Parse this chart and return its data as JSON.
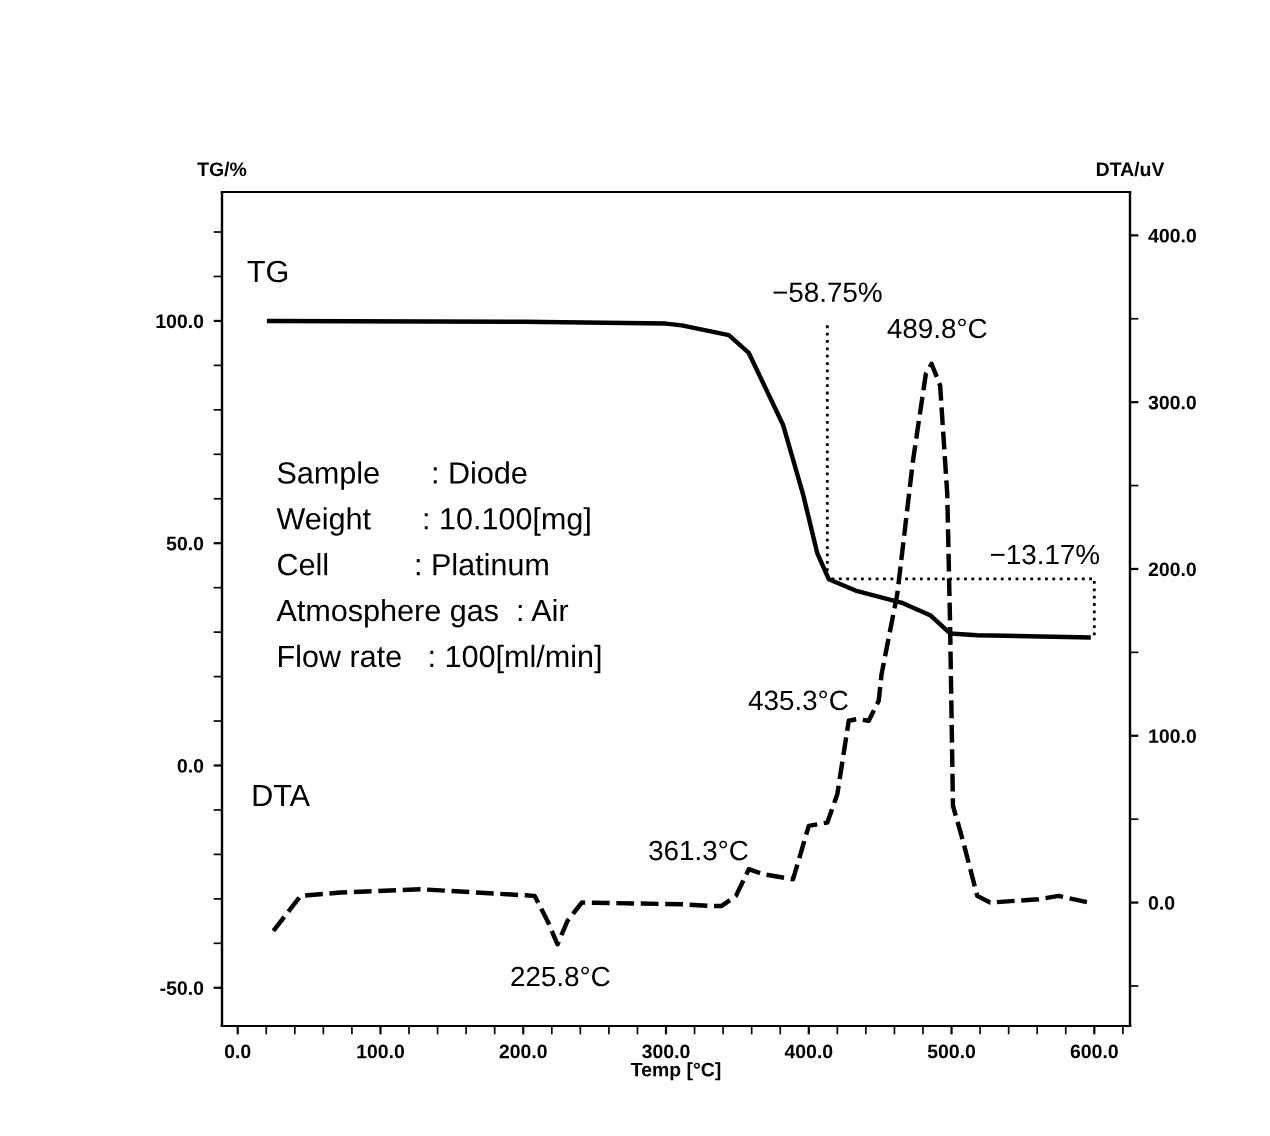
{
  "chart_data": {
    "type": "line",
    "xlabel": "Temp [°C]",
    "ylabel": "TG/%",
    "y2label": "DTA/uV",
    "xlim": [
      -11,
      625
    ],
    "ylim": [
      -58.6,
      129
    ],
    "y2lim": [
      -74,
      426
    ],
    "xticks": [
      {
        "value": 0,
        "label": "0.0"
      },
      {
        "value": 100,
        "label": "100.0"
      },
      {
        "value": 200,
        "label": "200.0"
      },
      {
        "value": 300,
        "label": "300.0"
      },
      {
        "value": 400,
        "label": "400.0"
      },
      {
        "value": 500,
        "label": "500.0"
      },
      {
        "value": 600,
        "label": "600.0"
      }
    ],
    "yticks": [
      {
        "value": -50,
        "label": "-50.0"
      },
      {
        "value": 0,
        "label": "0.0"
      },
      {
        "value": 50,
        "label": "50.0"
      },
      {
        "value": 100,
        "label": "100.0"
      }
    ],
    "y2ticks": [
      {
        "value": 0,
        "label": "0.0"
      },
      {
        "value": 100,
        "label": "100.0"
      },
      {
        "value": 200,
        "label": "200.0"
      },
      {
        "value": 300,
        "label": "300.0"
      },
      {
        "value": 400,
        "label": "400.0"
      }
    ],
    "grid": false,
    "series": [
      {
        "name": "TG",
        "color": "#000000",
        "line_style": "solid",
        "x": [
          22,
          200,
          300,
          311,
          344,
          358,
          382,
          396,
          406,
          414,
          434,
          466,
          485,
          499,
          518,
          596
        ],
        "values": [
          100,
          99.8,
          99.4,
          99,
          96.8,
          92.8,
          76.6,
          61,
          47.7,
          41.9,
          39.2,
          36.5,
          33.8,
          29.7,
          29.3,
          28.8
        ]
      },
      {
        "color": "#000000",
        "line_style": "dotted",
        "x": [
          413,
          413,
          600,
          600
        ],
        "values": [
          99,
          42,
          42,
          29
        ]
      },
      {
        "name": "DTA",
        "color": "#000000",
        "line_style": "dashed",
        "axis": "y2",
        "x": [
          25,
          44,
          72,
          128,
          208,
          217,
          224,
          231,
          241,
          311,
          330,
          339,
          349,
          358,
          368,
          389,
          400,
          413,
          420,
          428,
          434,
          442,
          449,
          451,
          462,
          473,
          482,
          486,
          492,
          497,
          499,
          501,
          508,
          518,
          527,
          561,
          575,
          596
        ],
        "values": [
          -17,
          4,
          6,
          8,
          4,
          -11,
          -25,
          -11,
          0,
          -1,
          -2,
          -2,
          4,
          20,
          17,
          14,
          46,
          48,
          65,
          109,
          110,
          109,
          121,
          137,
          185,
          265,
          317,
          323,
          310,
          245,
          166,
          58,
          37,
          4,
          0,
          2,
          4,
          0
        ]
      }
    ],
    "annotations": [
      "225.8°C",
      "361.3°C",
      "435.3°C",
      "489.8°C",
      "−58.75%",
      "−13.17%",
      "Sample      : Diode",
      "Weight      : 10.100[mg]",
      "Cell          : Platinum",
      "Atmosphere gas  : Air",
      "Flow rate   : 100[ml/min]"
    ]
  }
}
